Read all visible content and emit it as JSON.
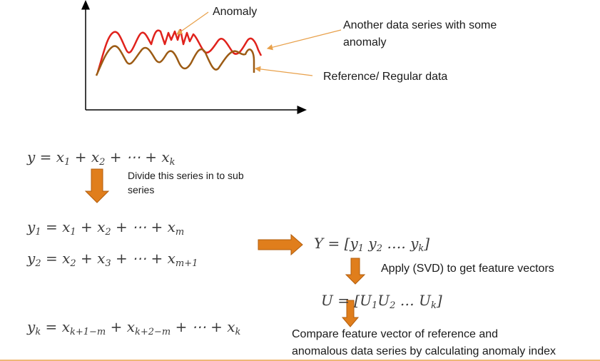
{
  "labels": {
    "anomaly": "Anomaly",
    "another_series_line1": "Another data series with some",
    "another_series_line2": "anomaly",
    "reference": "Reference/ Regular data",
    "divide": "Divide this series in to sub series",
    "apply_svd": "Apply (SVD) to get feature vectors",
    "compare_line1": "Compare feature vector of reference and",
    "compare_line2": "anomalous data series by calculating anomaly index"
  },
  "equations": {
    "eq_main": {
      "lhs": "y",
      "terms": [
        "x",
        "1",
        " + ",
        "x",
        "2",
        " + ⋯ + ",
        "x",
        "k"
      ]
    },
    "eq_y1": {
      "base": "y",
      "sub": "1",
      "rhs_parts": [
        " = ",
        "x",
        "1",
        " + ",
        "x",
        "2",
        " + ⋯ + ",
        "x",
        "m"
      ]
    },
    "eq_y2": {
      "base": "y",
      "sub": "2",
      "rhs_parts": [
        " = ",
        "x",
        "2",
        " + ",
        "x",
        "3",
        " + ⋯ + ",
        "x",
        "m+1"
      ]
    },
    "eq_yk": {
      "base": "y",
      "sub": "k",
      "rhs_parts": [
        " = ",
        "x",
        "k+1−m",
        " + ",
        "x",
        "k+2−m",
        " + ⋯ + ",
        "x",
        "k"
      ]
    },
    "eq_Y": {
      "text_prefix": "Y = [",
      "items": [
        "y",
        "1",
        " y",
        "2",
        " …. y",
        "k"
      ],
      "suffix": "]"
    },
    "eq_U": {
      "text_prefix": "U = [",
      "items": [
        "U",
        "1",
        "U",
        "2",
        " … U",
        "k"
      ],
      "suffix": "]"
    }
  },
  "colors": {
    "axis": "#000000",
    "anomaly_series": "#e0221c",
    "reference_series": "#9c5b14",
    "block_arrow": "#e07e1c",
    "block_arrow_stroke": "#b25e0e",
    "pointer_arrow": "#e8a04a",
    "bottom_rule": "#e8a04a"
  }
}
